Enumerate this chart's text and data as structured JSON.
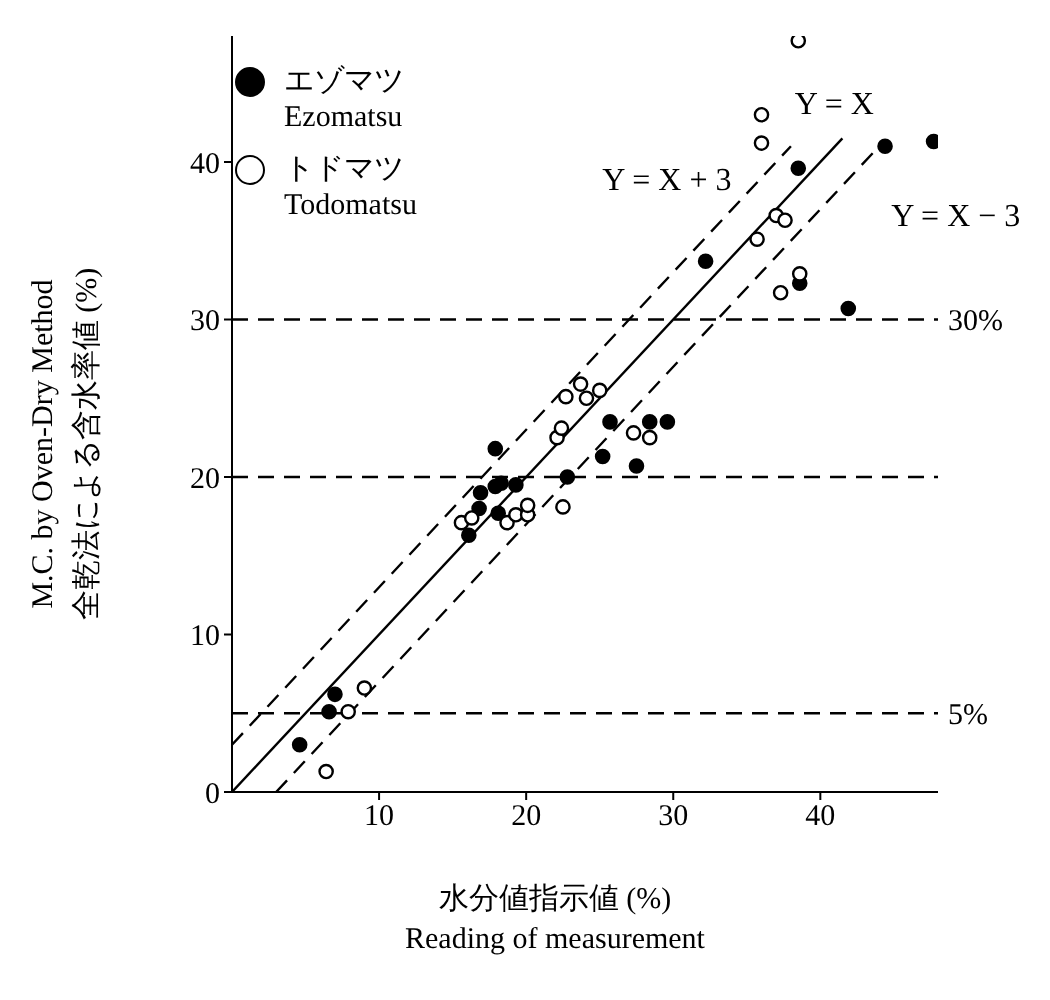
{
  "chart_data": {
    "type": "scatter",
    "xlabel": "水分値指示値 (%)\nReading of measurement",
    "ylabel": "M.C. by Oven-Dry Method\n全乾法による含水率値 (%)",
    "xlim": [
      0,
      48
    ],
    "ylim": [
      0,
      48
    ],
    "xticks": [
      10,
      20,
      30,
      40
    ],
    "yticks": [
      0,
      10,
      20,
      30,
      40
    ],
    "legend": "top left",
    "marker": "circle",
    "series": [
      {
        "name": "エゾマツ\nEzomatsu",
        "color": "#000000",
        "x": [
          4.6,
          7.0,
          6.6,
          16.1,
          16.8,
          16.9,
          17.9,
          18.3,
          19.3,
          18.1,
          22.8,
          25.2,
          27.5,
          17.9,
          25.7,
          28.4,
          29.6,
          32.2,
          38.5,
          44.4,
          47.7,
          38.6,
          41.9
        ],
        "values": [
          3.0,
          6.2,
          5.1,
          16.3,
          18.0,
          19.0,
          19.4,
          19.6,
          19.5,
          17.7,
          20.0,
          21.3,
          20.7,
          21.8,
          23.5,
          23.5,
          23.5,
          33.7,
          39.6,
          41.0,
          41.3,
          32.3,
          30.7
        ]
      },
      {
        "name": "トドマツ\nTodomatsu",
        "color": "#ffffff",
        "x": [
          6.4,
          7.9,
          9.0,
          15.6,
          16.3,
          18.7,
          19.3,
          20.1,
          20.1,
          22.5,
          22.1,
          22.4,
          27.3,
          28.4,
          22.7,
          23.7,
          24.1,
          25.0,
          35.7,
          37.0,
          37.6,
          37.3,
          38.6,
          36.0,
          36.0,
          38.5
        ],
        "values": [
          1.3,
          5.1,
          6.6,
          17.1,
          17.4,
          17.1,
          17.6,
          17.6,
          18.2,
          18.1,
          22.5,
          23.1,
          22.8,
          22.5,
          25.1,
          25.9,
          25.0,
          25.5,
          35.1,
          36.6,
          36.3,
          31.7,
          32.9,
          41.2,
          43.0,
          47.7
        ]
      },
      {
        "name": "Y = X",
        "type": "line",
        "color": "#000000",
        "line_style": "solid",
        "marker": "none",
        "x": [
          0,
          41.5
        ],
        "values": [
          0,
          41.5
        ]
      },
      {
        "name": "Y = X + 3",
        "type": "line",
        "color": "#000000",
        "line_style": "dashed",
        "marker": "none",
        "x": [
          0,
          38
        ],
        "values": [
          3,
          41
        ]
      },
      {
        "name": "Y = X − 3",
        "type": "line",
        "color": "#000000",
        "line_style": "dashed",
        "marker": "none",
        "x": [
          3,
          44
        ],
        "values": [
          0,
          41
        ]
      }
    ],
    "ref_lines": [
      {
        "axis": "y",
        "value": 30,
        "label": "30%",
        "line_style": "dashed",
        "color": "#000000"
      },
      {
        "axis": "y",
        "value": 20,
        "line_style": "dashed",
        "color": "#000000"
      },
      {
        "axis": "y",
        "value": 5,
        "label": "5%",
        "line_style": "dashed",
        "color": "#000000"
      }
    ]
  }
}
